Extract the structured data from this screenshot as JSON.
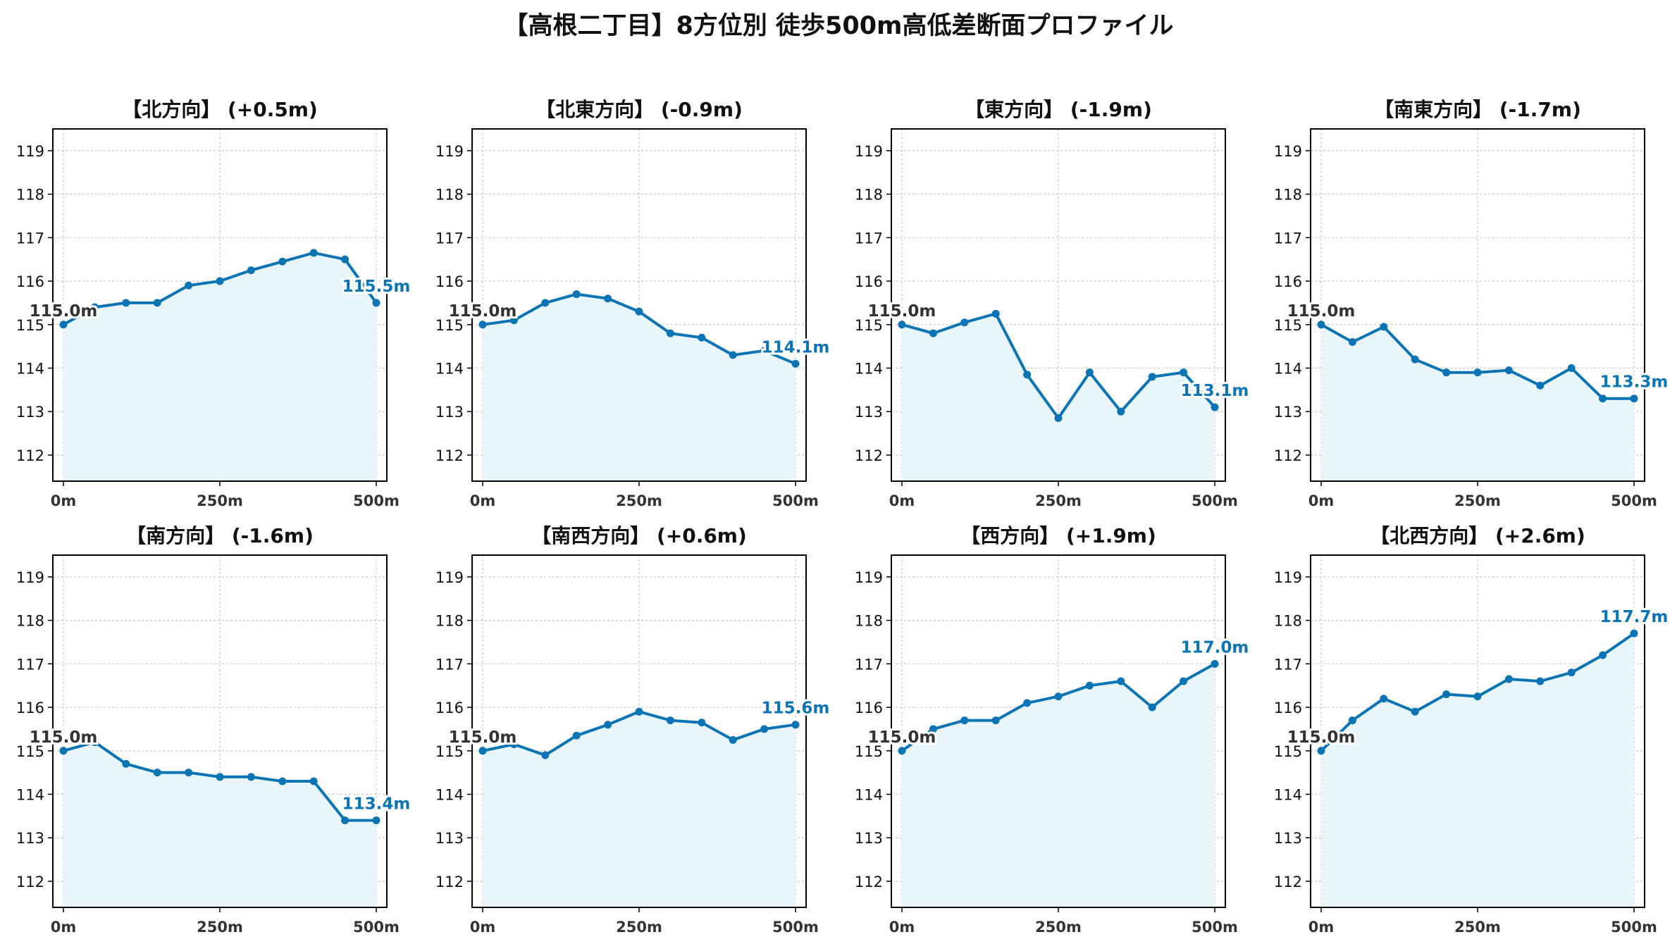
{
  "title": "【高根二丁目】8方位別 徒歩500m高低差断面プロファイル",
  "colors": {
    "line": "#0a74b5",
    "fill": "#e8f6fc",
    "grid": "#c8c8c8",
    "start_label": "#333333",
    "end_label": "#0a74b5"
  },
  "chart_data": [
    {
      "type": "line",
      "title": "【北方向】 (+0.5m)",
      "x": [
        0,
        50,
        100,
        150,
        200,
        250,
        300,
        350,
        400,
        450,
        500
      ],
      "y": [
        115.0,
        115.4,
        115.5,
        115.5,
        115.9,
        116.0,
        116.25,
        116.45,
        116.65,
        116.5,
        115.5
      ],
      "start_label": "115.0m",
      "end_label": "115.5m",
      "xticks": [
        "0m",
        "250m",
        "500m"
      ],
      "yticks": [
        112,
        113,
        114,
        115,
        116,
        117,
        118,
        119
      ],
      "xlim": [
        0,
        500
      ],
      "ylim": [
        111.4,
        119.5
      ],
      "grid": true
    },
    {
      "type": "line",
      "title": "【北東方向】 (-0.9m)",
      "x": [
        0,
        50,
        100,
        150,
        200,
        250,
        300,
        350,
        400,
        450,
        500
      ],
      "y": [
        115.0,
        115.1,
        115.5,
        115.7,
        115.6,
        115.3,
        114.8,
        114.7,
        114.3,
        114.4,
        114.1
      ],
      "start_label": "115.0m",
      "end_label": "114.1m",
      "xticks": [
        "0m",
        "250m",
        "500m"
      ],
      "yticks": [
        112,
        113,
        114,
        115,
        116,
        117,
        118,
        119
      ],
      "xlim": [
        0,
        500
      ],
      "ylim": [
        111.4,
        119.5
      ],
      "grid": true
    },
    {
      "type": "line",
      "title": "【東方向】 (-1.9m)",
      "x": [
        0,
        50,
        100,
        150,
        200,
        250,
        300,
        350,
        400,
        450,
        500
      ],
      "y": [
        115.0,
        114.8,
        115.05,
        115.25,
        113.85,
        112.85,
        113.9,
        113.0,
        113.8,
        113.9,
        113.1
      ],
      "start_label": "115.0m",
      "end_label": "113.1m",
      "xticks": [
        "0m",
        "250m",
        "500m"
      ],
      "yticks": [
        112,
        113,
        114,
        115,
        116,
        117,
        118,
        119
      ],
      "xlim": [
        0,
        500
      ],
      "ylim": [
        111.4,
        119.5
      ],
      "grid": true
    },
    {
      "type": "line",
      "title": "【南東方向】 (-1.7m)",
      "x": [
        0,
        50,
        100,
        150,
        200,
        250,
        300,
        350,
        400,
        450,
        500
      ],
      "y": [
        115.0,
        114.6,
        114.95,
        114.2,
        113.9,
        113.9,
        113.95,
        113.6,
        114.0,
        113.3,
        113.3
      ],
      "start_label": "115.0m",
      "end_label": "113.3m",
      "xticks": [
        "0m",
        "250m",
        "500m"
      ],
      "yticks": [
        112,
        113,
        114,
        115,
        116,
        117,
        118,
        119
      ],
      "xlim": [
        0,
        500
      ],
      "ylim": [
        111.4,
        119.5
      ],
      "grid": true
    },
    {
      "type": "line",
      "title": "【南方向】 (-1.6m)",
      "x": [
        0,
        50,
        100,
        150,
        200,
        250,
        300,
        350,
        400,
        450,
        500
      ],
      "y": [
        115.0,
        115.2,
        114.7,
        114.5,
        114.5,
        114.4,
        114.4,
        114.3,
        114.3,
        113.4,
        113.4
      ],
      "start_label": "115.0m",
      "end_label": "113.4m",
      "xticks": [
        "0m",
        "250m",
        "500m"
      ],
      "yticks": [
        112,
        113,
        114,
        115,
        116,
        117,
        118,
        119
      ],
      "xlim": [
        0,
        500
      ],
      "ylim": [
        111.4,
        119.5
      ],
      "grid": true
    },
    {
      "type": "line",
      "title": "【南西方向】 (+0.6m)",
      "x": [
        0,
        50,
        100,
        150,
        200,
        250,
        300,
        350,
        400,
        450,
        500
      ],
      "y": [
        115.0,
        115.15,
        114.9,
        115.35,
        115.6,
        115.9,
        115.7,
        115.65,
        115.25,
        115.5,
        115.6
      ],
      "start_label": "115.0m",
      "end_label": "115.6m",
      "xticks": [
        "0m",
        "250m",
        "500m"
      ],
      "yticks": [
        112,
        113,
        114,
        115,
        116,
        117,
        118,
        119
      ],
      "xlim": [
        0,
        500
      ],
      "ylim": [
        111.4,
        119.5
      ],
      "grid": true
    },
    {
      "type": "line",
      "title": "【西方向】 (+1.9m)",
      "x": [
        0,
        50,
        100,
        150,
        200,
        250,
        300,
        350,
        400,
        450,
        500
      ],
      "y": [
        115.0,
        115.5,
        115.7,
        115.7,
        116.1,
        116.25,
        116.5,
        116.6,
        116.0,
        116.6,
        117.0
      ],
      "start_label": "115.0m",
      "end_label": "117.0m",
      "xticks": [
        "0m",
        "250m",
        "500m"
      ],
      "yticks": [
        112,
        113,
        114,
        115,
        116,
        117,
        118,
        119
      ],
      "xlim": [
        0,
        500
      ],
      "ylim": [
        111.4,
        119.5
      ],
      "grid": true
    },
    {
      "type": "line",
      "title": "【北西方向】 (+2.6m)",
      "x": [
        0,
        50,
        100,
        150,
        200,
        250,
        300,
        350,
        400,
        450,
        500
      ],
      "y": [
        115.0,
        115.7,
        116.2,
        115.9,
        116.3,
        116.25,
        116.65,
        116.6,
        116.8,
        117.2,
        117.7
      ],
      "start_label": "115.0m",
      "end_label": "117.7m",
      "xticks": [
        "0m",
        "250m",
        "500m"
      ],
      "yticks": [
        112,
        113,
        114,
        115,
        116,
        117,
        118,
        119
      ],
      "xlim": [
        0,
        500
      ],
      "ylim": [
        111.4,
        119.5
      ],
      "grid": true
    }
  ]
}
